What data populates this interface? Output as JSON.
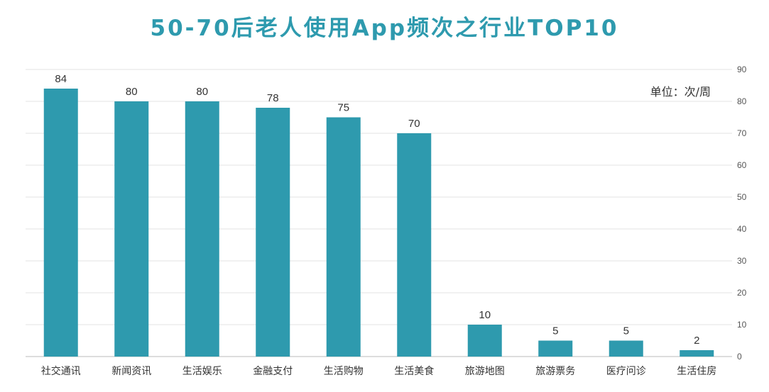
{
  "chart_data": {
    "type": "bar",
    "title": "50-70后老人使用App频次之行业TOP10",
    "unit": "单位：次/周",
    "categories": [
      "社交通讯",
      "新闻资讯",
      "生活娱乐",
      "金融支付",
      "生活购物",
      "生活美食",
      "旅游地图",
      "旅游票务",
      "医疗问诊",
      "生活住房"
    ],
    "values": [
      84,
      80,
      80,
      78,
      75,
      70,
      10,
      5,
      5,
      2
    ],
    "data_labels": [
      "84",
      "80",
      "80",
      "78",
      "75",
      "70",
      "10",
      "5",
      "5",
      "2"
    ],
    "ylim": [
      0,
      90
    ],
    "yticks": [
      0,
      10,
      20,
      30,
      40,
      50,
      60,
      70,
      80,
      90
    ],
    "y_axis_side": "right",
    "grid": true,
    "xlabel": "",
    "ylabel": ""
  },
  "colors": {
    "bar": "#2e9aae",
    "title": "#2e9aae",
    "grid": "#e3e3e3",
    "axis": "#bbbbbb"
  }
}
